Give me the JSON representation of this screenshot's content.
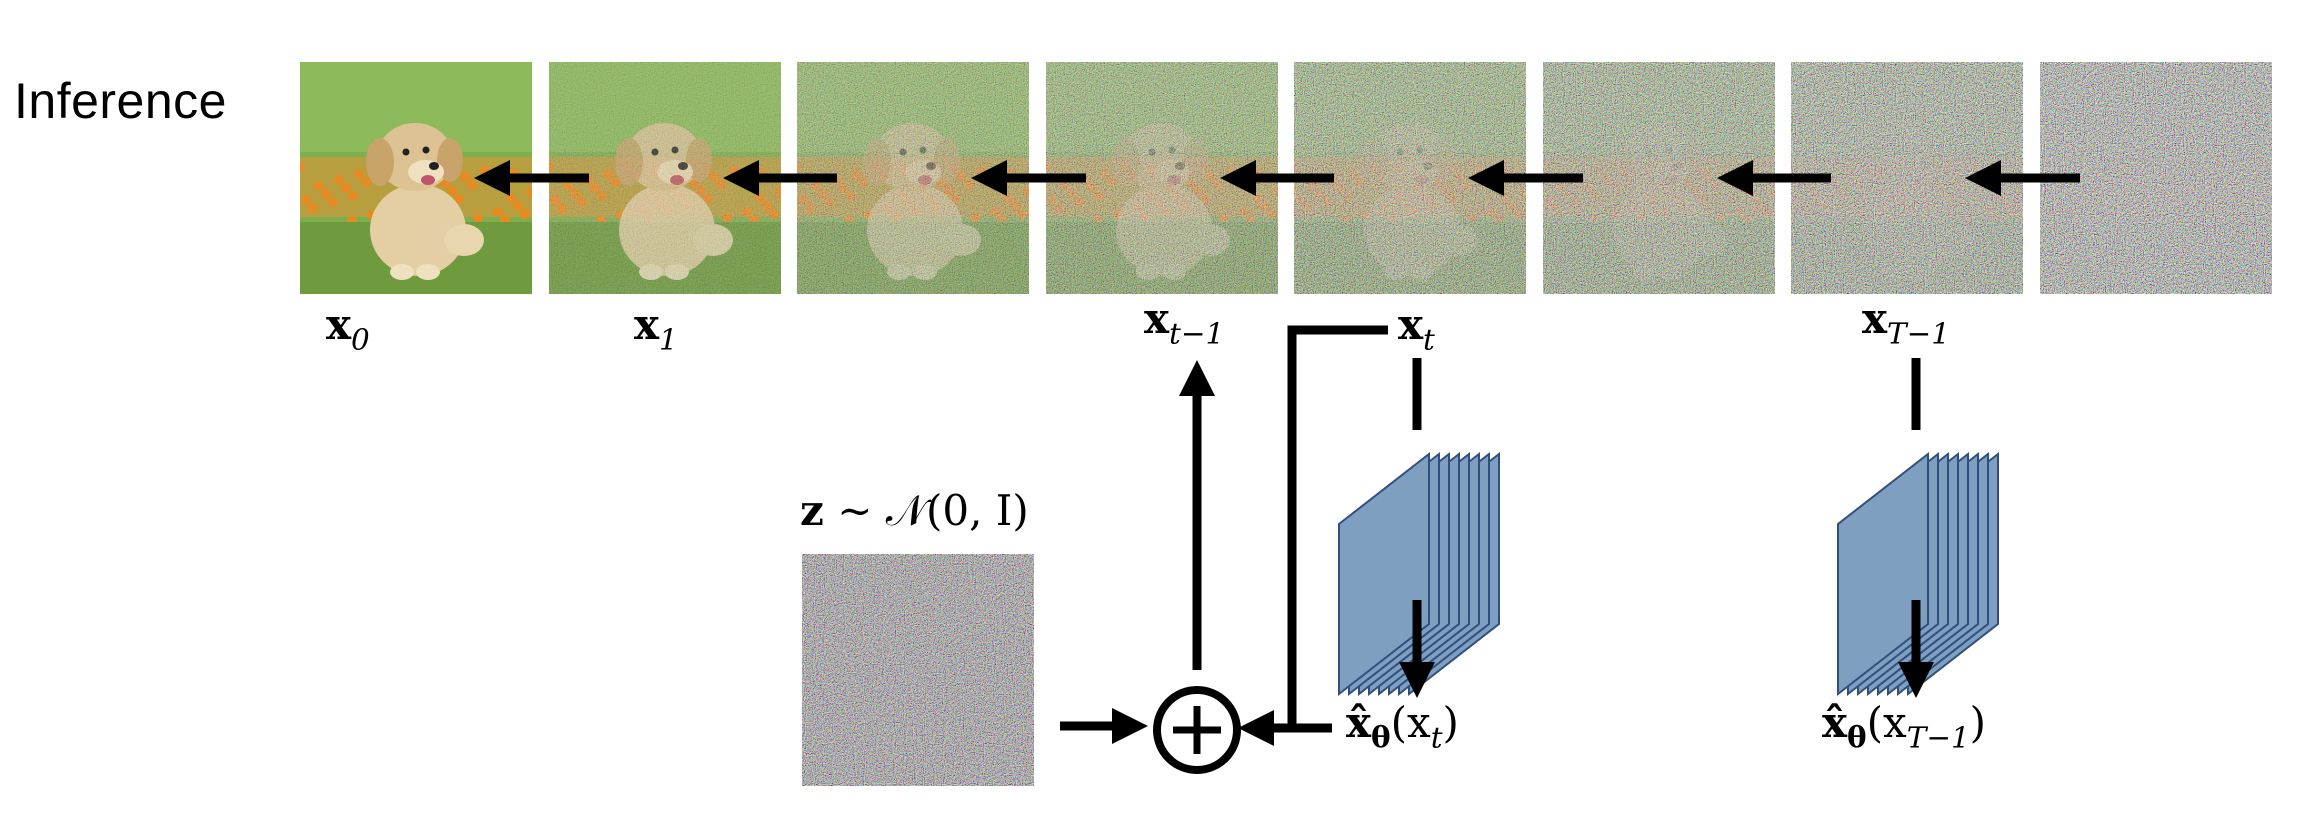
{
  "title": "Inference",
  "frames": [
    {
      "noise": 0.0,
      "label_base": "x",
      "label_sub": "0"
    },
    {
      "noise": 0.18,
      "label_base": "x",
      "label_sub": "1"
    },
    {
      "noise": 0.42,
      "label_base": "",
      "label_sub": ""
    },
    {
      "noise": 0.55,
      "label_base": "x",
      "label_sub": "t−1"
    },
    {
      "noise": 0.68,
      "label_base": "x",
      "label_sub": "t"
    },
    {
      "noise": 0.78,
      "label_base": "",
      "label_sub": ""
    },
    {
      "noise": 0.87,
      "label_base": "x",
      "label_sub": "T−1"
    },
    {
      "noise": 0.96,
      "label_base": "",
      "label_sub": ""
    }
  ],
  "noise_sample": {
    "label_z": "z",
    "label_dist": "∼ 𝒩(0, I)"
  },
  "output_t": {
    "hat": "x̂",
    "theta": "θ",
    "arg": "(x",
    "arg_sub": "t",
    "close": ")"
  },
  "output_T": {
    "hat": "x̂",
    "theta": "θ",
    "arg": "(x",
    "arg_sub": "T−1",
    "close": ")"
  },
  "colors": {
    "network_fill": "#7f9fc0",
    "network_stroke": "#2f4f7f",
    "arrow": "#000000"
  }
}
